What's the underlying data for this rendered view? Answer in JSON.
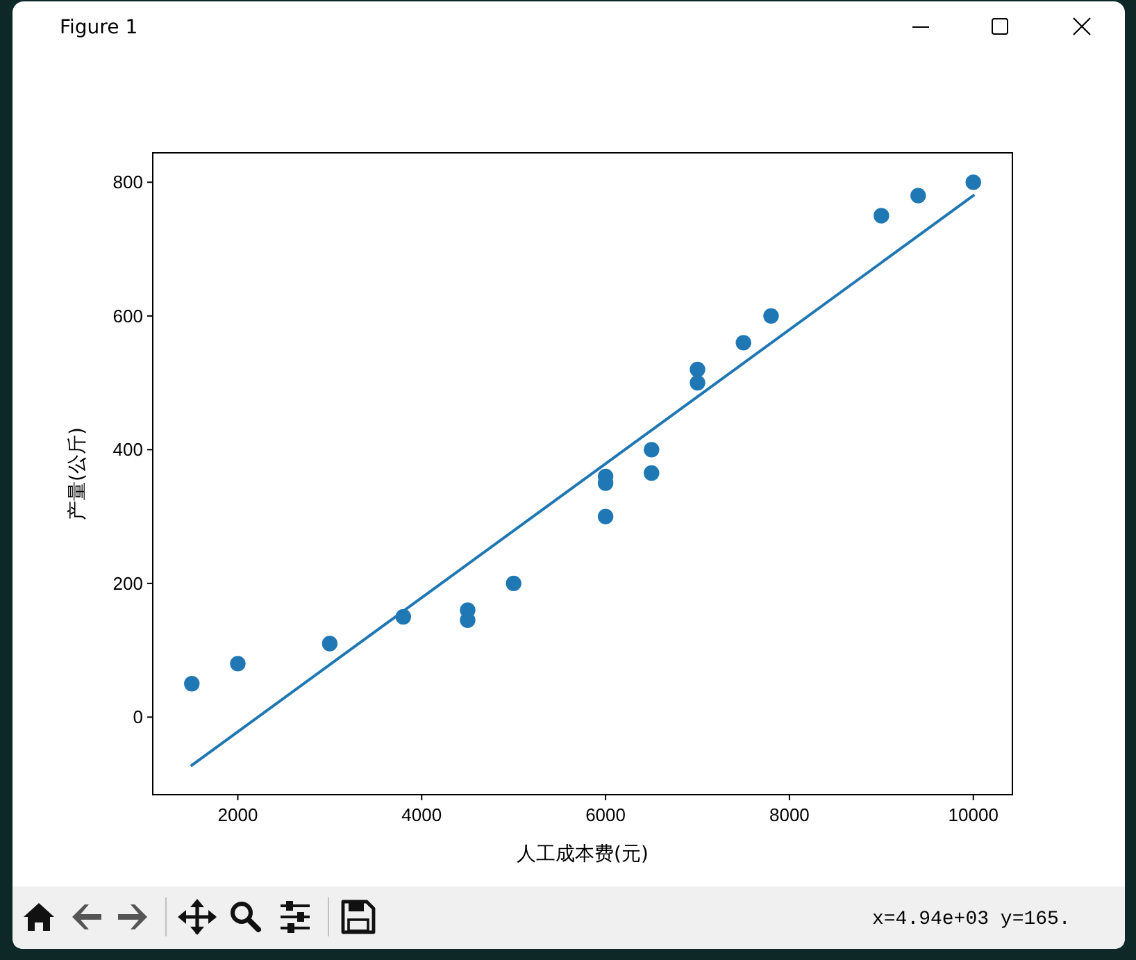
{
  "chart_data": {
    "type": "scatter",
    "xlabel": "人工成本费(元)",
    "ylabel": "产量(公斤)",
    "annotations": [
      "Figure 1",
      "x=4.94e+03 y=165."
    ],
    "series": [
      {
        "color": "#1f77b4",
        "marker": "circle",
        "x": [
          1500,
          2000,
          3000,
          3800,
          4500,
          4500,
          5000,
          6000,
          6000,
          6000,
          6500,
          6500,
          7000,
          7000,
          7500,
          7800,
          9000,
          9400,
          10000
        ],
        "values": [
          50,
          80,
          110,
          150,
          160,
          145,
          200,
          360,
          350,
          300,
          400,
          365,
          520,
          500,
          560,
          600,
          750,
          780,
          800
        ]
      },
      {
        "type": "line",
        "color": "#1f77b4",
        "marker": "none",
        "line_style": "solid",
        "x": [
          1500,
          10000
        ],
        "values": [
          -72,
          780
        ]
      }
    ],
    "xlim": [
      1075,
      10425
    ],
    "ylim": [
      -116,
      844
    ],
    "xticks": [
      2000,
      4000,
      6000,
      8000,
      10000
    ],
    "yticks": [
      0,
      200,
      400,
      600,
      800
    ]
  }
}
